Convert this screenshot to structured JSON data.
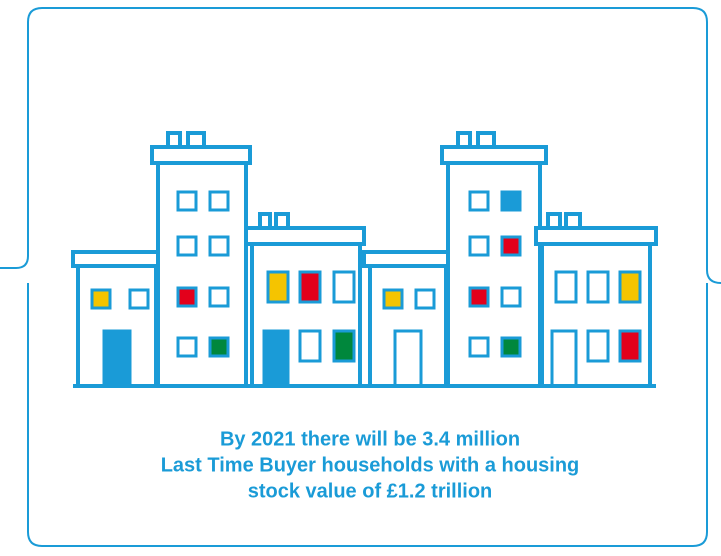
{
  "caption": {
    "lines": [
      "By 2021 there will be 3.4 million",
      "Last Time Buyer households with a housing",
      "stock value of £1.2 trillion"
    ]
  }
}
